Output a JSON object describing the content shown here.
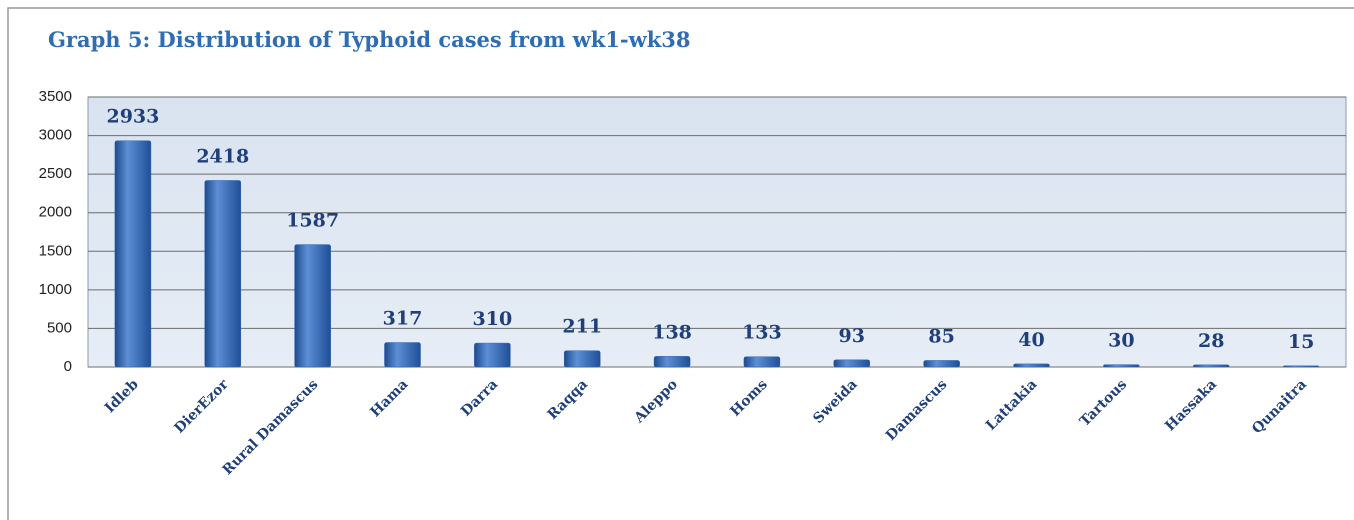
{
  "chart_data": {
    "type": "bar",
    "title": "Graph 5: Distribution of Typhoid cases from wk1-wk38",
    "categories": [
      "Idleb",
      "DierEzor",
      "Rural Damascus",
      "Hama",
      "Darra",
      "Raqqa",
      "Aleppo",
      "Homs",
      "Sweida",
      "Damascus",
      "Lattakia",
      "Tartous",
      "Hassaka",
      "Qunaitra"
    ],
    "values": [
      2933,
      2418,
      1587,
      317,
      310,
      211,
      138,
      133,
      93,
      85,
      40,
      30,
      28,
      15
    ],
    "color": "#2f63b0",
    "ylim": [
      0,
      3500
    ],
    "yticks": [
      0,
      500,
      1000,
      1500,
      2000,
      2500,
      3000,
      3500
    ],
    "grid": true
  }
}
